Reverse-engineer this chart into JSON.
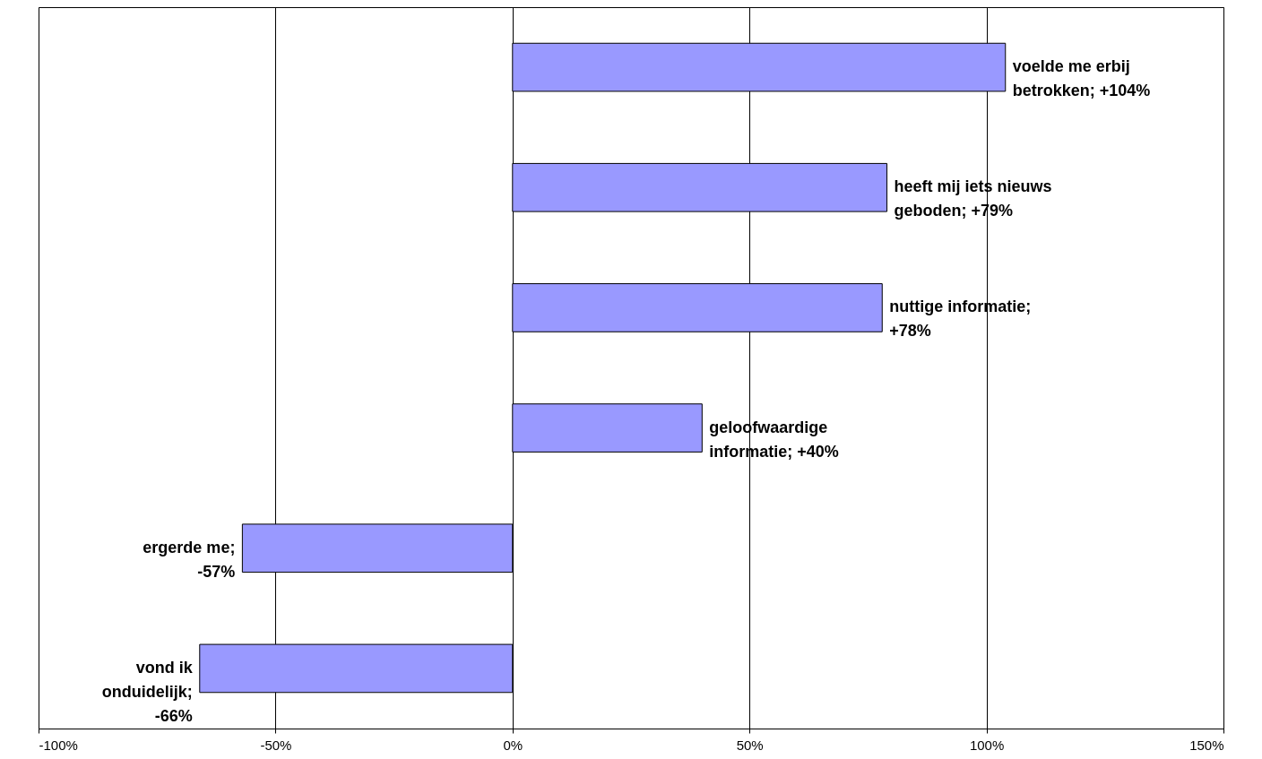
{
  "chart_data": {
    "type": "bar",
    "orientation": "horizontal",
    "categories": [
      null,
      null,
      null,
      null,
      null,
      null
    ],
    "values": [
      104,
      79,
      78,
      40,
      -57,
      -66
    ],
    "value_labels": [
      "voelde me erbij betrokken; +104%",
      "heeft mij iets nieuws geboden; +79%",
      "nuttige informatie; +78%",
      "geloofwaardige informatie; +40%",
      "ergerde me; -57%",
      "vond ik onduidelijk; -66%"
    ],
    "color": "#9999ff",
    "xlim": [
      -100,
      150
    ],
    "xticks": [
      {
        "value": -100,
        "label": "-100%"
      },
      {
        "value": -50,
        "label": "-50%"
      },
      {
        "value": 0,
        "label": "0%"
      },
      {
        "value": 50,
        "label": "50%"
      },
      {
        "value": 100,
        "label": "100%"
      },
      {
        "value": 150,
        "label": "150%"
      }
    ],
    "grid": "x"
  }
}
